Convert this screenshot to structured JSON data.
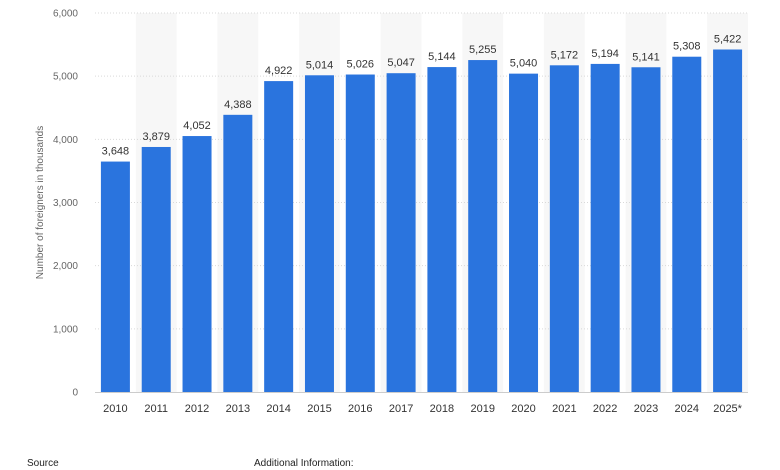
{
  "chart_data": {
    "type": "bar",
    "categories": [
      "2010",
      "2011",
      "2012",
      "2013",
      "2014",
      "2015",
      "2016",
      "2017",
      "2018",
      "2019",
      "2020",
      "2021",
      "2022",
      "2023",
      "2024",
      "2025*"
    ],
    "values": [
      3648,
      3879,
      4052,
      4388,
      4922,
      5014,
      5026,
      5047,
      5144,
      5255,
      5040,
      5172,
      5194,
      5141,
      5308,
      5422
    ],
    "value_labels": [
      "3,648",
      "3,879",
      "4,052",
      "4,388",
      "4,922",
      "5,014",
      "5,026",
      "5,047",
      "5,144",
      "5,255",
      "5,040",
      "5,172",
      "5,194",
      "5,141",
      "5,308",
      "5,422"
    ],
    "ylabel": "Number of foreigners in thousands",
    "xlabel": "",
    "ylim": [
      0,
      6000
    ],
    "yticks": [
      0,
      1000,
      2000,
      3000,
      4000,
      5000,
      6000
    ],
    "ytick_labels": [
      "0",
      "1,000",
      "2,000",
      "3,000",
      "4,000",
      "5,000",
      "6,000"
    ],
    "grid": true,
    "bar_color": "#2a74de",
    "alt_band_color": "#f7f7f7"
  },
  "footer": {
    "source_label": "Source",
    "additional_info_label": "Additional Information:"
  }
}
